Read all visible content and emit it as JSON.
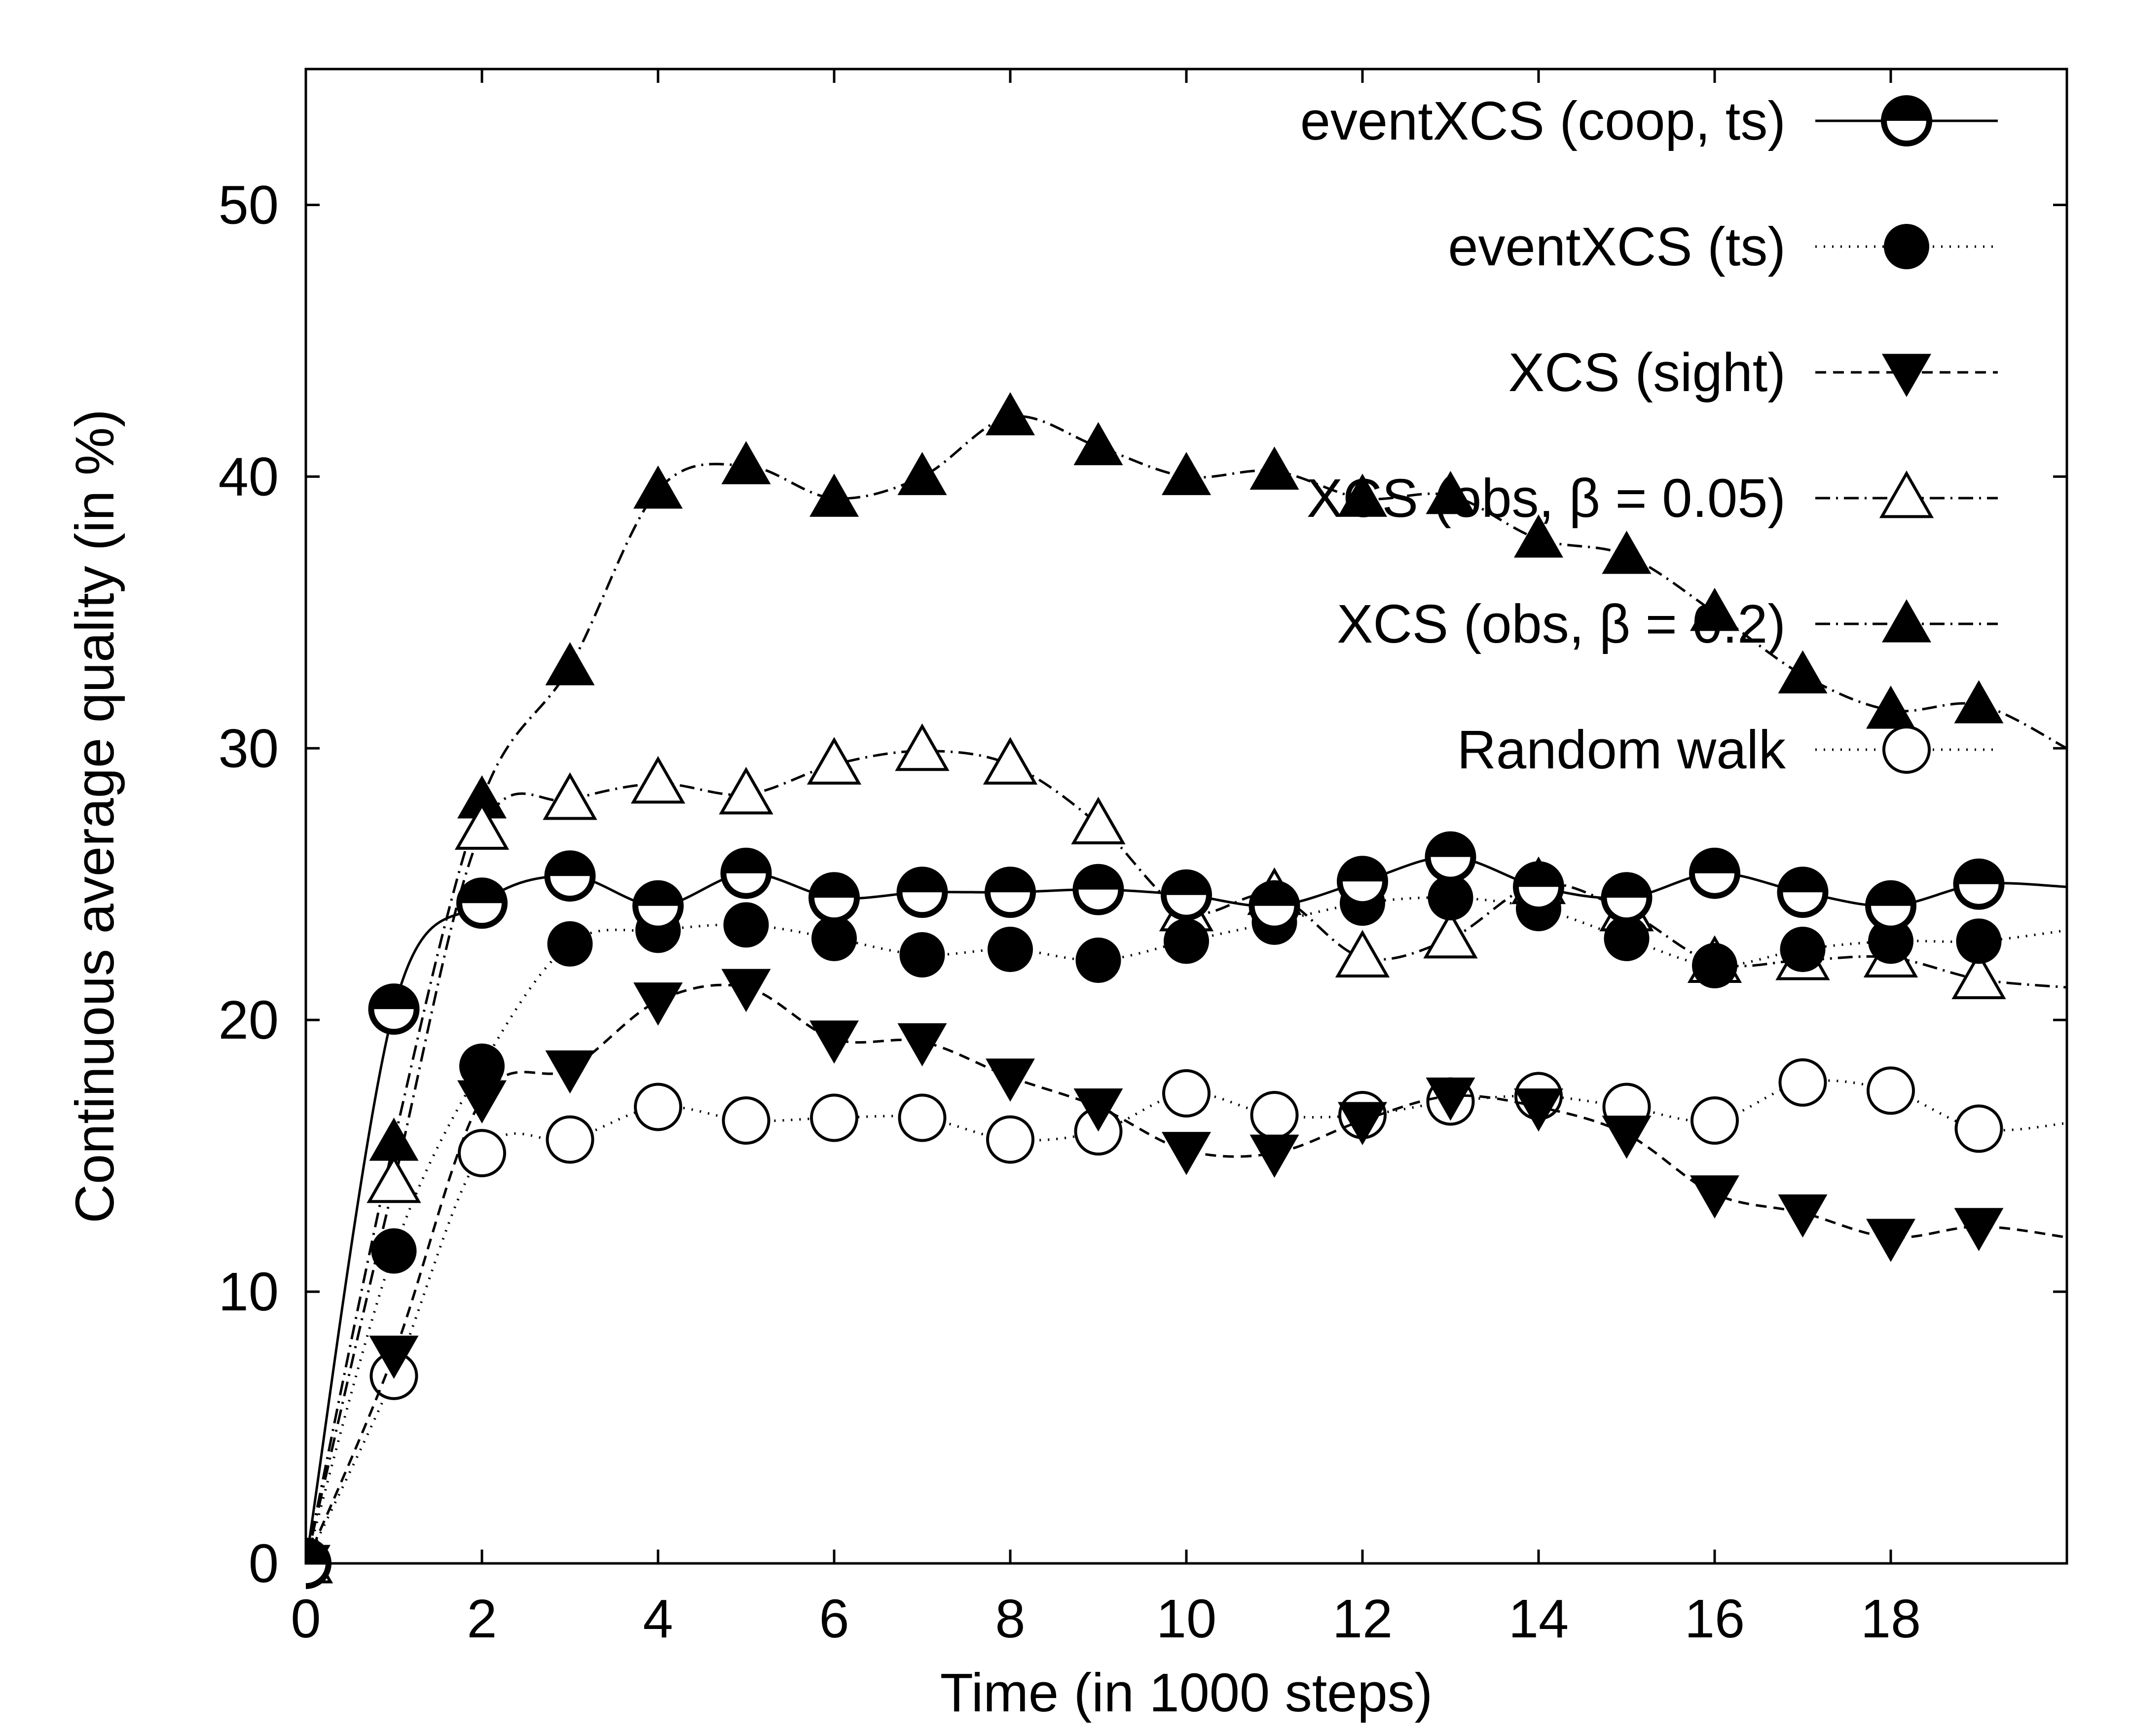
{
  "chart_data": {
    "type": "line",
    "title": "",
    "xlabel": "Time (in 1000 steps)",
    "ylabel": "Continuous average quality (in %)",
    "xlim": [
      0,
      20
    ],
    "ylim": [
      0,
      55
    ],
    "xticks": [
      0,
      2,
      4,
      6,
      8,
      10,
      12,
      14,
      16,
      18
    ],
    "yticks": [
      0,
      10,
      20,
      30,
      40,
      50
    ],
    "grid": false,
    "legend": "top-right",
    "series": [
      {
        "name": "eventXCS (coop, ts)",
        "style": "solid",
        "marker": "half-circle",
        "x": [
          0,
          1,
          2,
          3,
          4,
          5,
          6,
          7,
          8,
          9,
          10,
          11,
          12,
          13,
          14,
          15,
          16,
          17,
          18,
          19,
          20
        ],
        "y": [
          0,
          20.4,
          24.3,
          25.3,
          24.2,
          25.4,
          24.5,
          24.7,
          24.7,
          24.8,
          24.6,
          24.2,
          25.1,
          26.0,
          24.9,
          24.5,
          25.4,
          24.7,
          24.2,
          25.0,
          24.9
        ],
        "markers": [
          0,
          1,
          2,
          3,
          4,
          5,
          6,
          7,
          8,
          9,
          10,
          11,
          12,
          13,
          14,
          15,
          16,
          17,
          18,
          19
        ]
      },
      {
        "name": "eventXCS (ts)",
        "style": "dotted",
        "marker": "filled-circle",
        "x": [
          0,
          1,
          2,
          3,
          4,
          5,
          6,
          7,
          8,
          9,
          10,
          11,
          12,
          13,
          14,
          15,
          16,
          17,
          18,
          19,
          20
        ],
        "y": [
          0,
          11.5,
          18.3,
          22.8,
          23.3,
          23.5,
          23.0,
          22.4,
          22.6,
          22.2,
          22.9,
          23.6,
          24.3,
          24.5,
          24.1,
          23.0,
          22.0,
          22.6,
          22.9,
          22.9,
          23.3
        ],
        "markers": [
          0,
          1,
          2,
          3,
          4,
          5,
          6,
          7,
          8,
          9,
          10,
          11,
          12,
          13,
          14,
          15,
          16,
          17,
          18,
          19
        ]
      },
      {
        "name": "XCS (sight)",
        "style": "dashed",
        "marker": "filled-triangle-down",
        "x": [
          0,
          1,
          2,
          3,
          4,
          5,
          6,
          7,
          8,
          9,
          10,
          11,
          12,
          13,
          14,
          15,
          16,
          17,
          18,
          19,
          20
        ],
        "y": [
          0,
          7.7,
          17.1,
          18.2,
          20.7,
          21.2,
          19.3,
          19.2,
          17.9,
          16.8,
          15.2,
          15.1,
          16.3,
          17.2,
          16.8,
          15.8,
          13.6,
          12.9,
          12.0,
          12.4,
          12.0
        ],
        "markers": [
          0,
          1,
          2,
          3,
          4,
          5,
          6,
          7,
          8,
          9,
          10,
          11,
          12,
          13,
          14,
          15,
          16,
          17,
          18,
          19
        ]
      },
      {
        "name": "XCS (obs, β = 0.05)",
        "style": "dashdot",
        "marker": "open-triangle-up",
        "x": [
          0,
          1,
          2,
          3,
          4,
          5,
          6,
          7,
          8,
          9,
          10,
          11,
          12,
          13,
          14,
          15,
          16,
          17,
          18,
          19,
          20
        ],
        "y": [
          0,
          14.0,
          27.0,
          28.1,
          28.7,
          28.3,
          29.4,
          29.9,
          29.4,
          27.2,
          24.0,
          24.6,
          22.3,
          23.0,
          25.0,
          24.0,
          22.1,
          22.2,
          22.3,
          21.5,
          21.2
        ],
        "markers": [
          0,
          1,
          2,
          3,
          4,
          5,
          6,
          7,
          8,
          9,
          10,
          11,
          12,
          13,
          14,
          15,
          16,
          17,
          18,
          19
        ]
      },
      {
        "name": "XCS (obs, β = 0.2)",
        "style": "dashdot",
        "marker": "filled-triangle-up",
        "x": [
          0,
          1,
          2,
          3,
          4,
          5,
          6,
          7,
          8,
          9,
          10,
          11,
          12,
          13,
          14,
          15,
          16,
          17,
          18,
          19,
          20
        ],
        "y": [
          0,
          15.5,
          28.1,
          33.0,
          39.5,
          40.4,
          39.2,
          40.0,
          42.2,
          41.1,
          40.0,
          40.2,
          39.2,
          39.3,
          37.7,
          37.1,
          35.0,
          32.7,
          31.4,
          31.6,
          30.0
        ],
        "markers": [
          0,
          1,
          2,
          3,
          4,
          5,
          6,
          7,
          8,
          9,
          10,
          11,
          12,
          13,
          14,
          15,
          16,
          17,
          18,
          19
        ]
      },
      {
        "name": "Random walk",
        "style": "dotted",
        "marker": "open-circle",
        "x": [
          0,
          1,
          2,
          3,
          4,
          5,
          6,
          7,
          8,
          9,
          10,
          11,
          12,
          13,
          14,
          15,
          16,
          17,
          18,
          19,
          20
        ],
        "y": [
          0,
          6.9,
          15.1,
          15.6,
          16.8,
          16.3,
          16.4,
          16.4,
          15.6,
          15.9,
          17.3,
          16.5,
          16.5,
          17.0,
          17.2,
          16.8,
          16.3,
          17.7,
          17.4,
          16.0,
          16.2
        ],
        "markers": [
          0,
          1,
          2,
          3,
          4,
          5,
          6,
          7,
          8,
          9,
          10,
          11,
          12,
          13,
          14,
          15,
          16,
          17,
          18,
          19
        ]
      }
    ]
  }
}
